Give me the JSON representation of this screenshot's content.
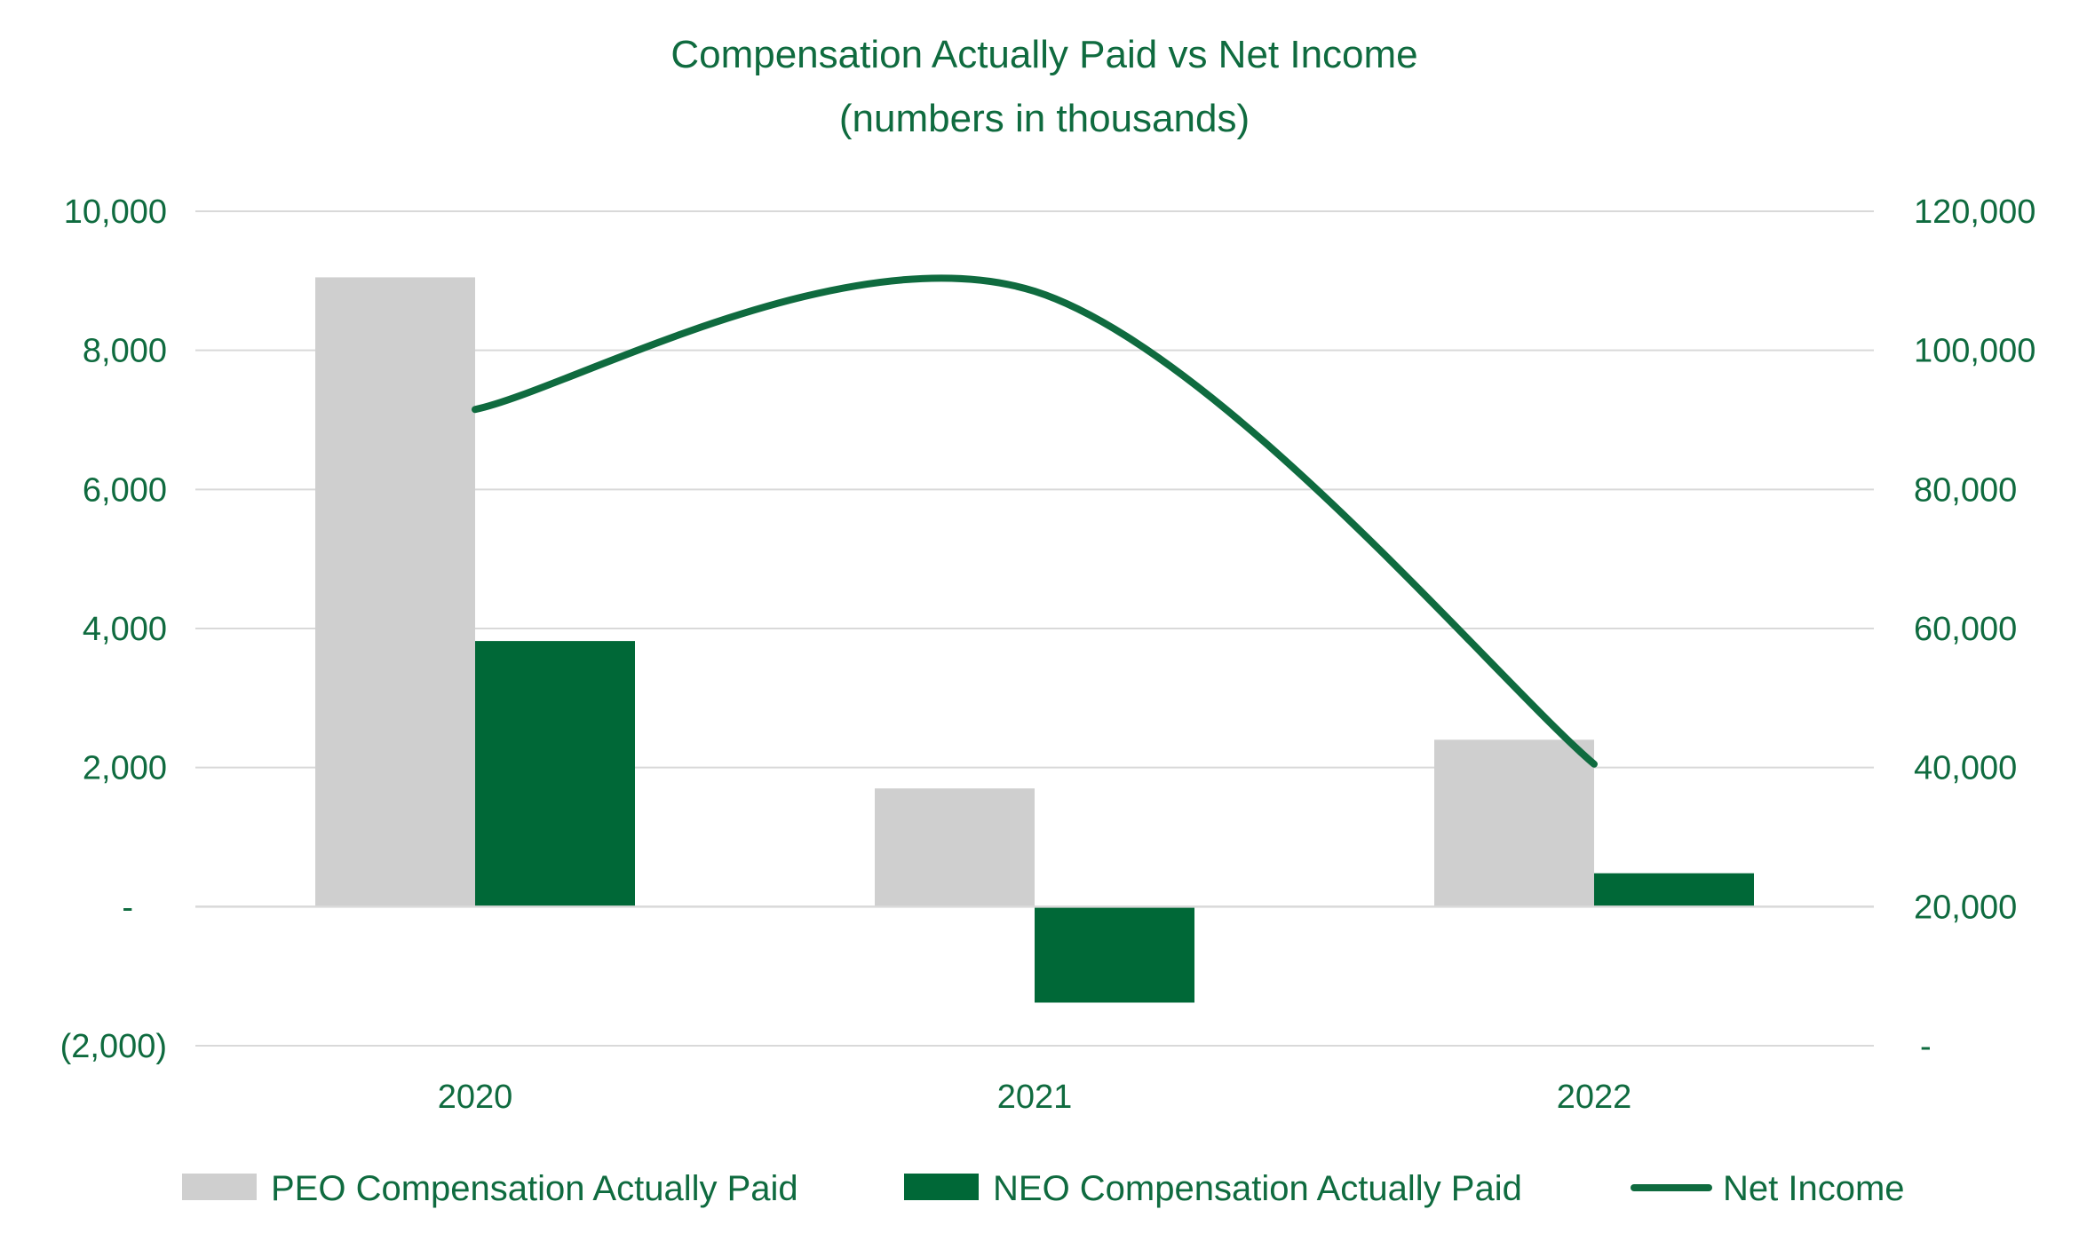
{
  "chart_data": {
    "type": "bar",
    "title": "Compensation Actually Paid vs Net Income",
    "subtitle": "(numbers in thousands)",
    "categories": [
      "2020",
      "2021",
      "2022"
    ],
    "series": [
      {
        "name": "PEO Compensation Actually Paid",
        "type": "bar",
        "axis": "left",
        "color": "#cfcfcf",
        "values": [
          9050,
          1700,
          2400
        ]
      },
      {
        "name": "NEO Compensation Actually Paid",
        "type": "bar",
        "axis": "left",
        "color": "#006837",
        "values": [
          3820,
          -1380,
          480
        ]
      },
      {
        "name": "Net Income",
        "type": "line",
        "axis": "right",
        "color": "#0f6b3f",
        "values": [
          91500,
          108500,
          40500
        ]
      }
    ],
    "y_left": {
      "ylim": [
        -2000,
        10000
      ],
      "ticks": [
        10000,
        8000,
        6000,
        4000,
        2000,
        0,
        -2000
      ],
      "tick_labels": [
        "10,000",
        "8,000",
        "6,000",
        "4,000",
        "2,000",
        "-",
        "(2,000)"
      ]
    },
    "y_right": {
      "ylim": [
        0,
        120000
      ],
      "ticks": [
        120000,
        100000,
        80000,
        60000,
        40000,
        20000,
        0
      ],
      "tick_labels": [
        "120,000",
        "100,000",
        "80,000",
        "60,000",
        "40,000",
        "20,000",
        "-"
      ]
    },
    "grid": true,
    "legend_position": "bottom",
    "colors": {
      "text": "#0f6b3f",
      "grid": "#d9d9d9"
    }
  }
}
